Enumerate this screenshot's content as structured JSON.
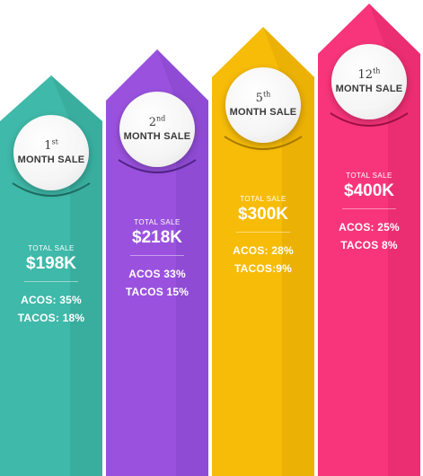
{
  "cards": [
    {
      "ordinal_number": "1",
      "ordinal_suffix": "st",
      "period_label": "MONTH SALE",
      "total_label": "TOTAL SALE",
      "total_value": "$198K",
      "acos": "ACOS: 35%",
      "tacos": "TACOS: 18%",
      "color": "#3fb9a9",
      "color_shade": "#2f9c8d"
    },
    {
      "ordinal_number": "2",
      "ordinal_suffix": "nd",
      "period_label": "MONTH SALE",
      "total_label": "TOTAL SALE",
      "total_value": "$218K",
      "acos": "ACOS 33%",
      "tacos": "TACOS 15%",
      "color": "#9a52de",
      "color_shade": "#7a3ec0"
    },
    {
      "ordinal_number": "5",
      "ordinal_suffix": "th",
      "period_label": "MONTH SALE",
      "total_label": "TOTAL SALE",
      "total_value": "$300K",
      "acos": "ACOS: 28%",
      "tacos": "TACOS:9%",
      "color": "#f7bc08",
      "color_shade": "#d89f00"
    },
    {
      "ordinal_number": "12",
      "ordinal_suffix": "th",
      "period_label": "MONTH SALE",
      "total_label": "TOTAL SALE",
      "total_value": "$400K",
      "acos": "ACOS: 25%",
      "tacos": "TACOS 8%",
      "color": "#f8357a",
      "color_shade": "#d41f60"
    }
  ]
}
